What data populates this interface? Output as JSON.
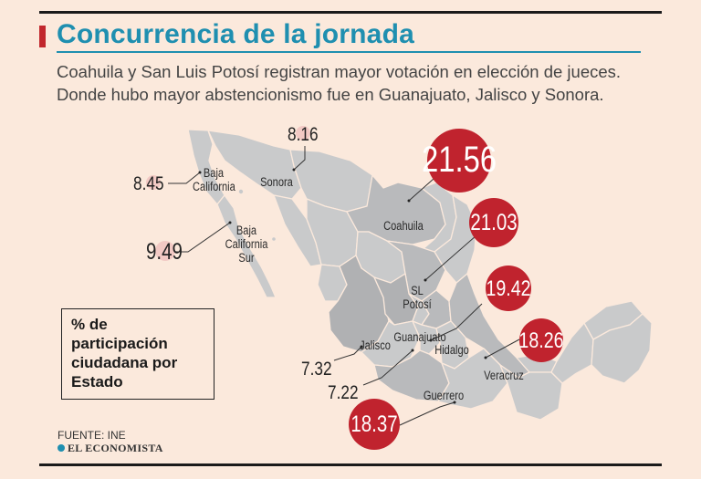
{
  "header": {
    "title": "Concurrencia de la jornada",
    "subtitle_lines": [
      "Coahuila y San Luis Potosí registran mayor votación en elección de jueces.",
      "Donde hubo mayor abstencionismo fue en Guanajuato, Jalisco y Sonora."
    ]
  },
  "legend": {
    "lines": [
      "% de",
      "participación",
      "ciudadana por",
      "Estado"
    ]
  },
  "footer": {
    "source": "FUENTE: INE",
    "brand": "EL ECONOMISTA"
  },
  "colors": {
    "background": "#fbe9dc",
    "title": "#1f8fb0",
    "accent_red": "#c1272d",
    "bubble_red": "#c0232e",
    "bubble_pink": "#f2c9c4",
    "map_gray": "#c9cacb",
    "map_dark": "#b0b1b3"
  },
  "states": [
    {
      "name": "Baja California",
      "lines": [
        "Baja",
        "California"
      ],
      "value": "8.45",
      "highlight": "low"
    },
    {
      "name": "Sonora",
      "lines": [
        "Sonora"
      ],
      "value": "8.16",
      "highlight": "low"
    },
    {
      "name": "Baja California Sur",
      "lines": [
        "Baja",
        "California",
        "Sur"
      ],
      "value": "9.49",
      "highlight": "low"
    },
    {
      "name": "Coahuila",
      "lines": [
        "Coahuila"
      ],
      "value": "21.56",
      "highlight": "high"
    },
    {
      "name": "SL Potosí",
      "lines": [
        "SL",
        "Potosí"
      ],
      "value": "21.03",
      "highlight": "high"
    },
    {
      "name": "Hidalgo",
      "lines": [
        "Hidalgo"
      ],
      "value": "19.42",
      "highlight": "high"
    },
    {
      "name": "Veracruz",
      "lines": [
        "Veracruz"
      ],
      "value": "18.26",
      "highlight": "high"
    },
    {
      "name": "Guerrero",
      "lines": [
        "Guerrero"
      ],
      "value": "18.37",
      "highlight": "high"
    },
    {
      "name": "Jalisco",
      "lines": [
        "Jalisco"
      ],
      "value": "7.32",
      "highlight": "none"
    },
    {
      "name": "Guanajuato",
      "lines": [
        "Guanajuato"
      ],
      "value": "7.22",
      "highlight": "none"
    }
  ]
}
